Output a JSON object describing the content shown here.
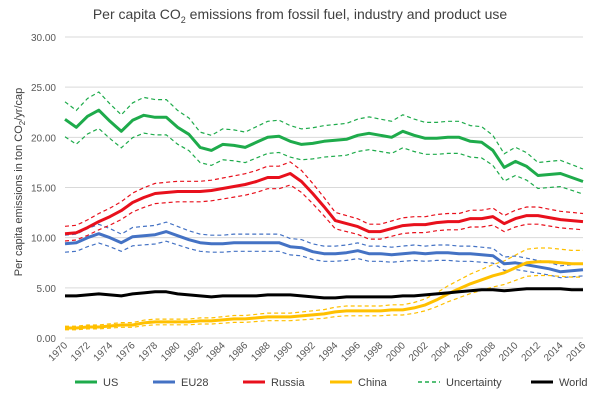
{
  "chart_data": {
    "type": "line",
    "title": {
      "pre": "Per capita CO",
      "sub": "2",
      "post": " emissions from fossil fuel, industry and product use"
    },
    "ylabel": {
      "pre": "Per capita emissions in ton CO",
      "sub": "2",
      "post": "/yr/cap"
    },
    "xlabel": "",
    "ylim": [
      0,
      30
    ],
    "yticks": [
      "0.00",
      "5.00",
      "10.00",
      "15.00",
      "20.00",
      "25.00",
      "30.00"
    ],
    "xticks": [
      "1970",
      "1972",
      "1974",
      "1976",
      "1978",
      "1980",
      "1982",
      "1984",
      "1986",
      "1988",
      "1990",
      "1992",
      "1994",
      "1996",
      "1998",
      "2000",
      "2002",
      "2004",
      "2006",
      "2008",
      "2010",
      "2012",
      "2014",
      "2016"
    ],
    "grid": "horizontal",
    "legend_position": "bottom",
    "x": [
      1970,
      1971,
      1972,
      1973,
      1974,
      1975,
      1976,
      1977,
      1978,
      1979,
      1980,
      1981,
      1982,
      1983,
      1984,
      1985,
      1986,
      1987,
      1988,
      1989,
      1990,
      1991,
      1992,
      1993,
      1994,
      1995,
      1996,
      1997,
      1998,
      1999,
      2000,
      2001,
      2002,
      2003,
      2004,
      2005,
      2006,
      2007,
      2008,
      2009,
      2010,
      2011,
      2012,
      2013,
      2014,
      2015,
      2016
    ],
    "series": [
      {
        "name": "US",
        "color": "#1eab4b",
        "style": "solid",
        "band": 0.08,
        "values": [
          21.8,
          21.0,
          22.1,
          22.7,
          21.6,
          20.6,
          21.7,
          22.2,
          22.0,
          22.0,
          21.0,
          20.3,
          19.0,
          18.7,
          19.3,
          19.2,
          19.0,
          19.5,
          20.0,
          20.1,
          19.6,
          19.3,
          19.4,
          19.6,
          19.7,
          19.8,
          20.2,
          20.4,
          20.2,
          20.0,
          20.6,
          20.2,
          19.9,
          19.9,
          20.0,
          20.0,
          19.6,
          19.5,
          18.7,
          17.0,
          17.6,
          17.1,
          16.2,
          16.3,
          16.4,
          16.0,
          15.6
        ]
      },
      {
        "name": "EU28",
        "color": "#4472c4",
        "style": "solid",
        "band": 0.09,
        "values": [
          9.4,
          9.5,
          10.0,
          10.4,
          10.0,
          9.5,
          10.1,
          10.2,
          10.3,
          10.6,
          10.2,
          9.8,
          9.5,
          9.4,
          9.4,
          9.5,
          9.5,
          9.5,
          9.5,
          9.5,
          9.1,
          9.0,
          8.6,
          8.4,
          8.4,
          8.5,
          8.7,
          8.4,
          8.4,
          8.3,
          8.4,
          8.5,
          8.4,
          8.5,
          8.5,
          8.4,
          8.4,
          8.3,
          8.2,
          7.4,
          7.5,
          7.3,
          7.1,
          6.9,
          6.6,
          6.7,
          6.8
        ]
      },
      {
        "name": "Russia",
        "color": "#e8101c",
        "style": "solid",
        "band": 0.07,
        "values": [
          10.4,
          10.5,
          11.0,
          11.6,
          12.1,
          12.7,
          13.5,
          14.0,
          14.4,
          14.5,
          14.6,
          14.6,
          14.6,
          14.7,
          14.9,
          15.1,
          15.3,
          15.6,
          16.0,
          16.0,
          16.4,
          15.6,
          14.4,
          13.1,
          11.7,
          11.4,
          11.1,
          10.6,
          10.6,
          10.9,
          11.2,
          11.3,
          11.3,
          11.5,
          11.6,
          11.6,
          11.9,
          11.9,
          12.1,
          11.4,
          11.9,
          12.2,
          12.2,
          12.0,
          11.8,
          11.7,
          11.6
        ]
      },
      {
        "name": "China",
        "color": "#ffc000",
        "style": "solid",
        "band": 0.18,
        "values": [
          1.0,
          1.0,
          1.1,
          1.1,
          1.2,
          1.3,
          1.3,
          1.5,
          1.6,
          1.6,
          1.6,
          1.6,
          1.7,
          1.7,
          1.8,
          1.9,
          1.9,
          2.0,
          2.1,
          2.1,
          2.1,
          2.2,
          2.3,
          2.4,
          2.6,
          2.7,
          2.7,
          2.7,
          2.7,
          2.8,
          2.8,
          3.0,
          3.3,
          3.8,
          4.4,
          4.9,
          5.4,
          5.8,
          6.2,
          6.5,
          7.0,
          7.5,
          7.6,
          7.6,
          7.5,
          7.4,
          7.4
        ]
      },
      {
        "name": "World",
        "color": "#000000",
        "style": "solid",
        "band": 0,
        "values": [
          4.2,
          4.2,
          4.3,
          4.4,
          4.3,
          4.2,
          4.4,
          4.5,
          4.6,
          4.6,
          4.4,
          4.3,
          4.2,
          4.1,
          4.2,
          4.2,
          4.2,
          4.2,
          4.3,
          4.3,
          4.3,
          4.2,
          4.1,
          4.0,
          4.0,
          4.1,
          4.1,
          4.1,
          4.1,
          4.1,
          4.2,
          4.2,
          4.3,
          4.4,
          4.5,
          4.6,
          4.7,
          4.8,
          4.8,
          4.7,
          4.8,
          4.9,
          4.9,
          4.9,
          4.9,
          4.8,
          4.8
        ]
      }
    ],
    "legend": [
      {
        "label": "US",
        "color": "#1eab4b",
        "dash": false
      },
      {
        "label": "EU28",
        "color": "#4472c4",
        "dash": false
      },
      {
        "label": "Russia",
        "color": "#e8101c",
        "dash": false
      },
      {
        "label": "China",
        "color": "#ffc000",
        "dash": false
      },
      {
        "label": "Uncertainty",
        "color": "#1eab4b",
        "dash": true
      },
      {
        "label": "World",
        "color": "#000000",
        "dash": false
      }
    ]
  }
}
